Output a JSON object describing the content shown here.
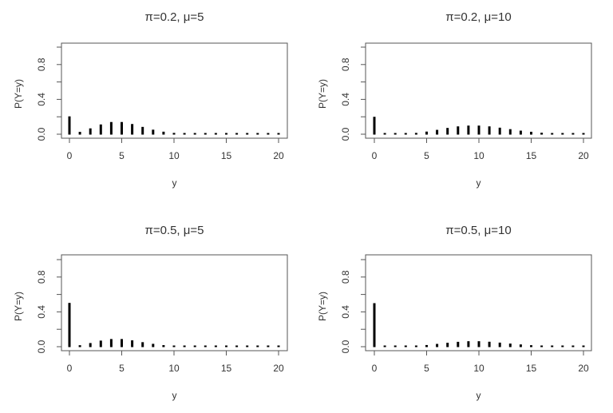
{
  "figure": {
    "layout": "2x2 grid",
    "ylabel": "P(Y=y)",
    "xlabel": "y"
  },
  "chart_data": [
    {
      "type": "bar",
      "style": "histogram-spikes",
      "title": "π=0.2, μ=5",
      "xlabel": "y",
      "ylabel": "P(Y=y)",
      "xlim": [
        0,
        20
      ],
      "ylim": [
        0,
        1
      ],
      "xticks": [
        0,
        5,
        10,
        15,
        20
      ],
      "yticks": [
        0.0,
        0.2,
        0.4,
        0.6,
        0.8,
        1.0
      ],
      "ytick_labels": [
        "0.0",
        "",
        "0.4",
        "",
        "0.8",
        ""
      ],
      "grid": false,
      "x": [
        0,
        1,
        2,
        3,
        4,
        5,
        6,
        7,
        8,
        9,
        10,
        11,
        12,
        13,
        14,
        15,
        16,
        17,
        18,
        19,
        20
      ],
      "values": [
        0.205,
        0.027,
        0.067,
        0.112,
        0.14,
        0.14,
        0.117,
        0.084,
        0.052,
        0.029,
        0.015,
        0.007,
        0.003,
        0.001,
        0.0004,
        0.0001,
        0.0,
        0.0,
        0.0,
        0.0,
        0.0
      ]
    },
    {
      "type": "bar",
      "style": "histogram-spikes",
      "title": "π=0.2, μ=10",
      "xlabel": "y",
      "ylabel": "P(Y=y)",
      "xlim": [
        0,
        20
      ],
      "ylim": [
        0,
        1
      ],
      "xticks": [
        0,
        5,
        10,
        15,
        20
      ],
      "yticks": [
        0.0,
        0.2,
        0.4,
        0.6,
        0.8,
        1.0
      ],
      "ytick_labels": [
        "0.0",
        "",
        "0.4",
        "",
        "0.8",
        ""
      ],
      "grid": false,
      "x": [
        0,
        1,
        2,
        3,
        4,
        5,
        6,
        7,
        8,
        9,
        10,
        11,
        12,
        13,
        14,
        15,
        16,
        17,
        18,
        19,
        20
      ],
      "values": [
        0.2,
        0.0004,
        0.002,
        0.006,
        0.015,
        0.03,
        0.05,
        0.072,
        0.09,
        0.099,
        0.099,
        0.09,
        0.075,
        0.058,
        0.041,
        0.028,
        0.017,
        0.01,
        0.006,
        0.003,
        0.0015
      ]
    },
    {
      "type": "bar",
      "style": "histogram-spikes",
      "title": "π=0.5, μ=5",
      "xlabel": "y",
      "ylabel": "P(Y=y)",
      "xlim": [
        0,
        20
      ],
      "ylim": [
        0,
        1
      ],
      "xticks": [
        0,
        5,
        10,
        15,
        20
      ],
      "yticks": [
        0.0,
        0.2,
        0.4,
        0.6,
        0.8,
        1.0
      ],
      "ytick_labels": [
        "0.0",
        "",
        "0.4",
        "",
        "0.8",
        ""
      ],
      "grid": false,
      "x": [
        0,
        1,
        2,
        3,
        4,
        5,
        6,
        7,
        8,
        9,
        10,
        11,
        12,
        13,
        14,
        15,
        16,
        17,
        18,
        19,
        20
      ],
      "values": [
        0.503,
        0.017,
        0.042,
        0.07,
        0.088,
        0.088,
        0.073,
        0.052,
        0.033,
        0.018,
        0.009,
        0.004,
        0.002,
        0.0007,
        0.0002,
        0.0001,
        0.0,
        0.0,
        0.0,
        0.0,
        0.0
      ]
    },
    {
      "type": "bar",
      "style": "histogram-spikes",
      "title": "π=0.5, μ=10",
      "xlabel": "y",
      "ylabel": "P(Y=y)",
      "xlim": [
        0,
        20
      ],
      "ylim": [
        0,
        1
      ],
      "xticks": [
        0,
        5,
        10,
        15,
        20
      ],
      "yticks": [
        0.0,
        0.2,
        0.4,
        0.6,
        0.8,
        1.0
      ],
      "ytick_labels": [
        "0.0",
        "",
        "0.4",
        "",
        "0.8",
        ""
      ],
      "grid": false,
      "x": [
        0,
        1,
        2,
        3,
        4,
        5,
        6,
        7,
        8,
        9,
        10,
        11,
        12,
        13,
        14,
        15,
        16,
        17,
        18,
        19,
        20
      ],
      "values": [
        0.5,
        0.0002,
        0.001,
        0.004,
        0.009,
        0.019,
        0.032,
        0.045,
        0.056,
        0.063,
        0.063,
        0.057,
        0.047,
        0.036,
        0.026,
        0.017,
        0.011,
        0.006,
        0.004,
        0.002,
        0.001
      ]
    }
  ],
  "colors": {
    "spike": "#000000",
    "axis": "#555555",
    "text": "#333333",
    "background": "#ffffff"
  }
}
